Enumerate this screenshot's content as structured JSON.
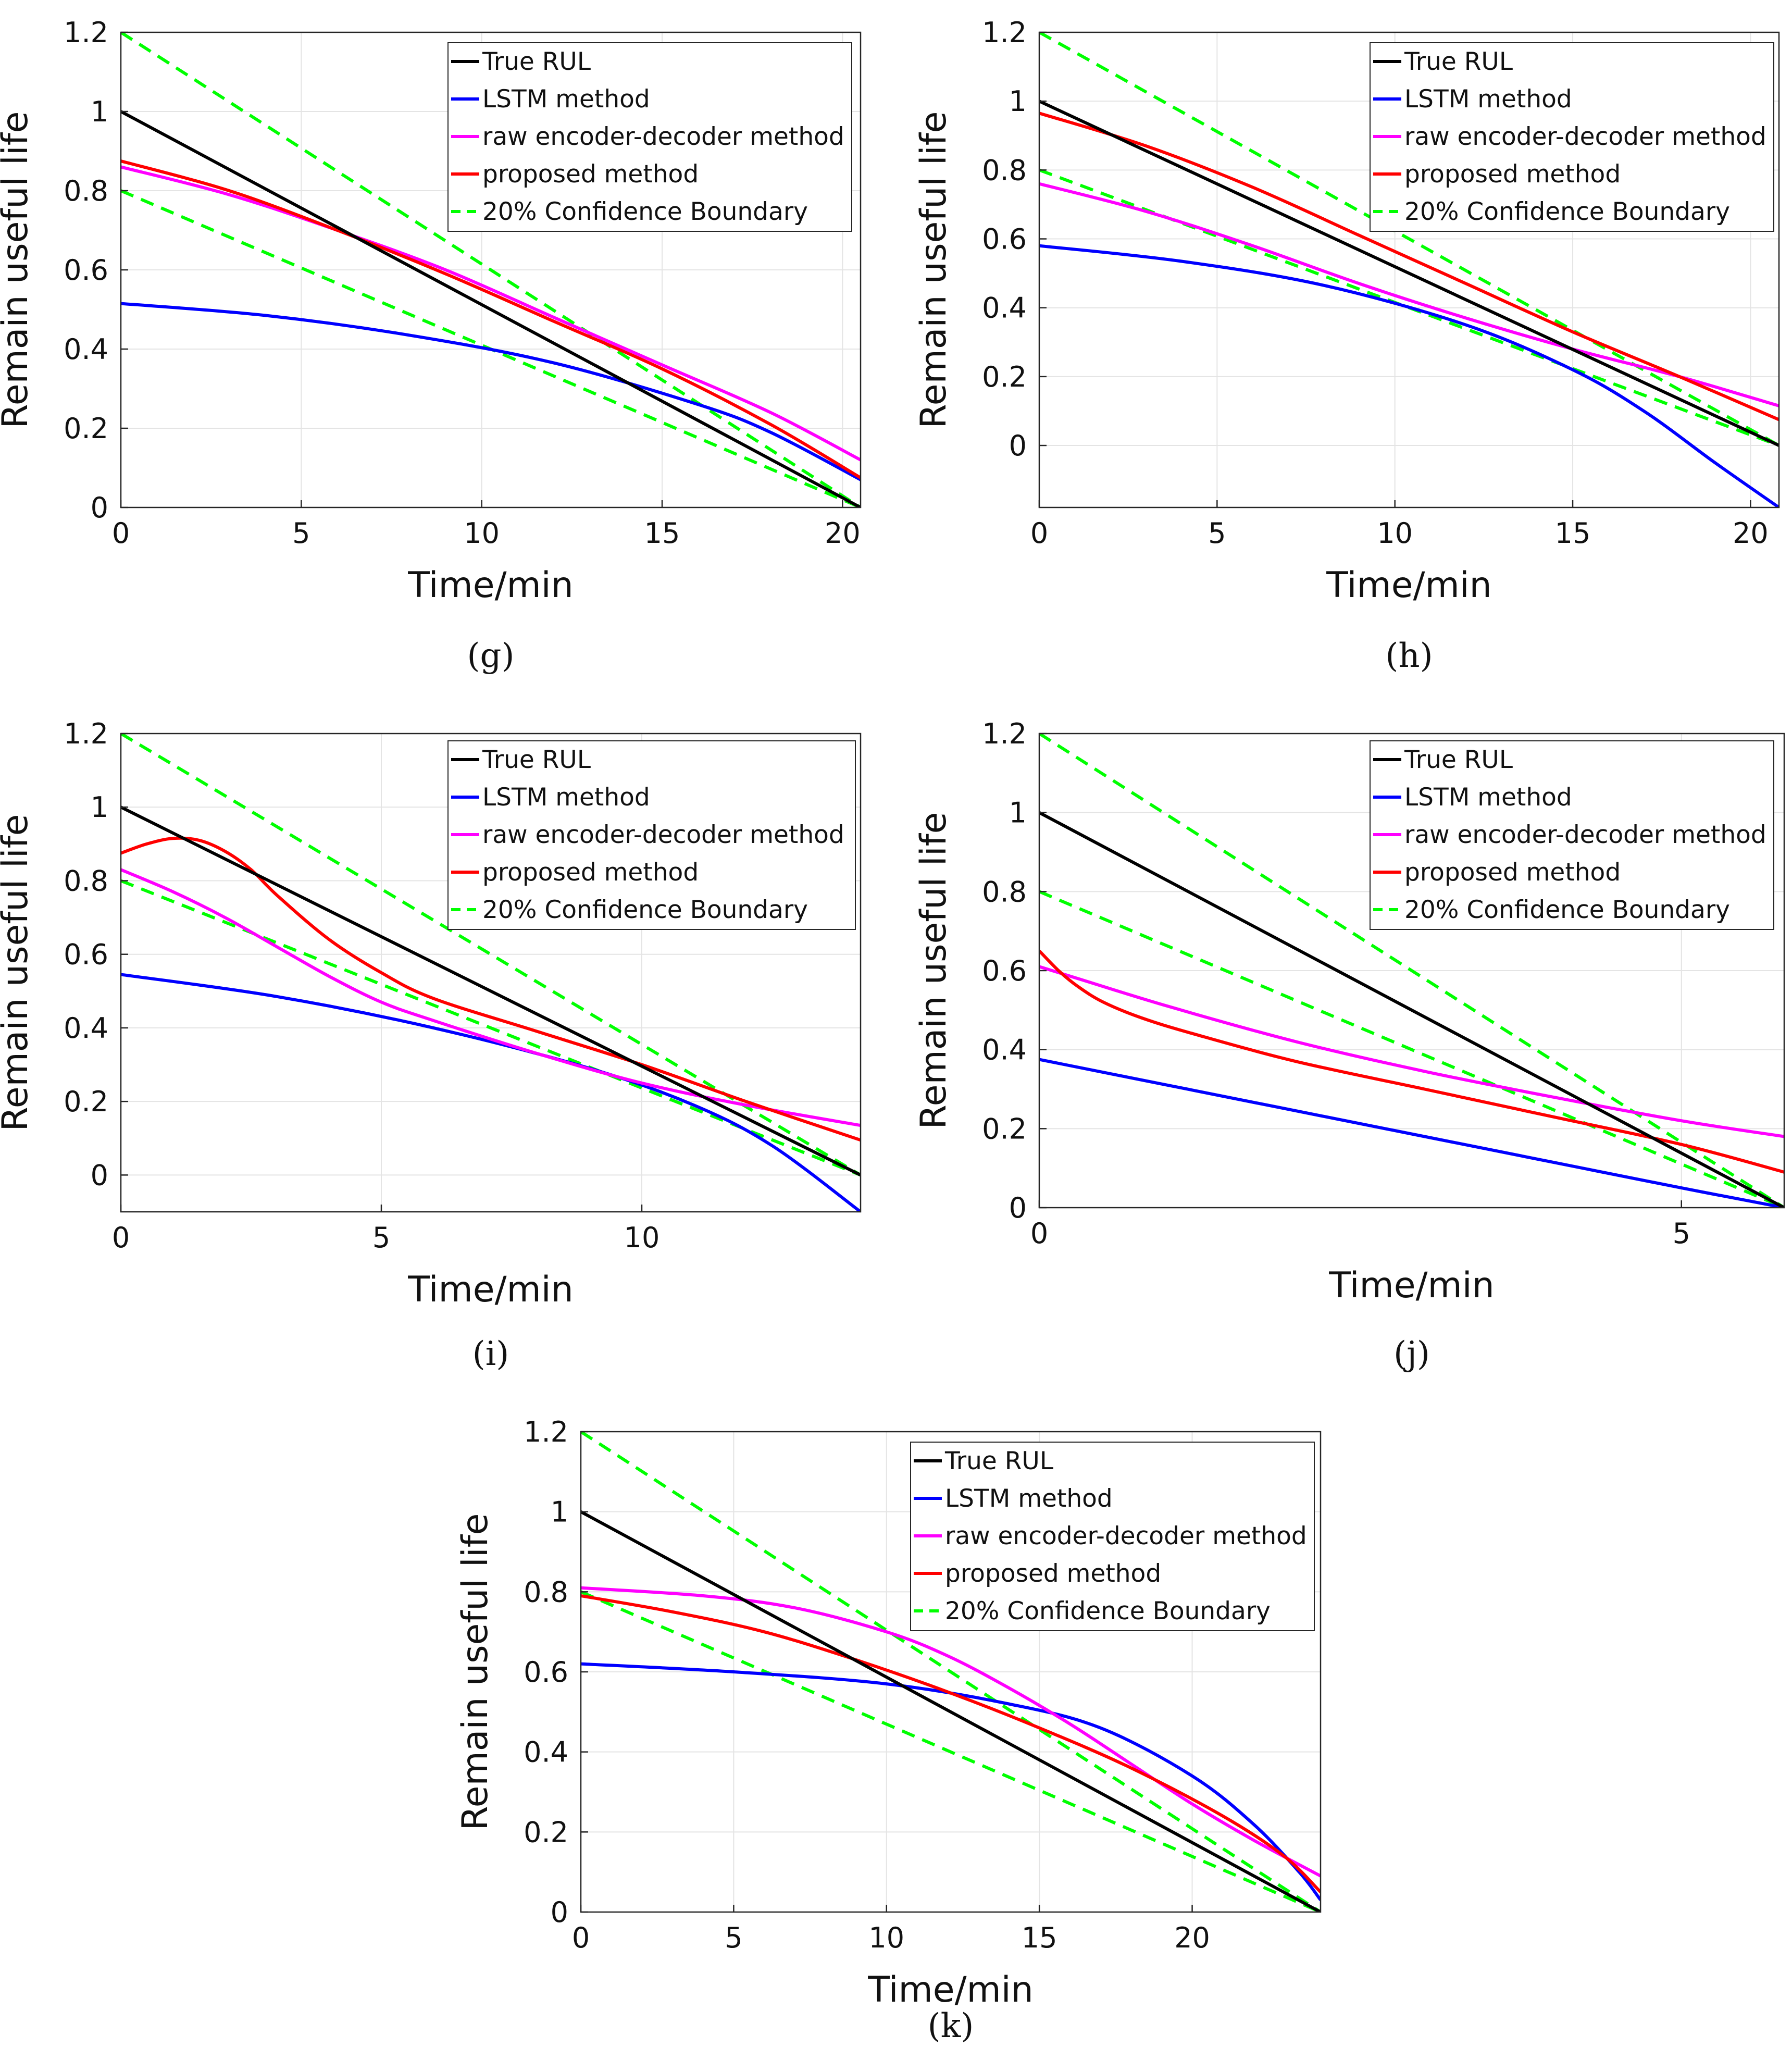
{
  "figure": {
    "legend_labels": [
      "True RUL",
      "LSTM method",
      "raw encoder-decoder method",
      "proposed method",
      "20% Confidence Boundary"
    ],
    "colors": {
      "true": "#000000",
      "lstm": "#0000ff",
      "raw": "#ff00ff",
      "proposed": "#ff0000",
      "bound": "#00ff00",
      "grid": "#e4e4e4"
    }
  },
  "chart_data": [
    {
      "id": "g",
      "type": "line",
      "caption": "(g)",
      "xlabel": "Time/min",
      "ylabel": "Remain useful life",
      "xlim": [
        0,
        20.5
      ],
      "ylim": [
        0,
        1.2
      ],
      "grid": true,
      "legend": "top-right",
      "xticks": [
        0,
        5,
        10,
        15,
        20
      ],
      "yticks": [
        0,
        0.2,
        0.4,
        0.6,
        0.8,
        1,
        1.2
      ],
      "series": [
        {
          "key": "true",
          "name": "True RUL",
          "x": [
            0,
            20.5
          ],
          "y": [
            1,
            0
          ]
        },
        {
          "key": "lstm",
          "name": "LSTM method",
          "x": [
            0,
            4,
            8,
            12,
            16,
            18,
            20.5
          ],
          "y": [
            0.515,
            0.485,
            0.435,
            0.365,
            0.26,
            0.19,
            0.07
          ]
        },
        {
          "key": "raw",
          "name": "raw encoder-decoder method",
          "x": [
            0,
            3,
            6,
            9,
            12,
            15,
            18,
            20.5
          ],
          "y": [
            0.86,
            0.79,
            0.7,
            0.6,
            0.48,
            0.36,
            0.24,
            0.12
          ]
        },
        {
          "key": "proposed",
          "name": "proposed method",
          "x": [
            0,
            3,
            6,
            9,
            12,
            15,
            18,
            20.5
          ],
          "y": [
            0.875,
            0.8,
            0.7,
            0.59,
            0.47,
            0.35,
            0.21,
            0.075
          ]
        },
        {
          "key": "bound",
          "name": "20% Confidence Boundary",
          "x": [
            0,
            20.5
          ],
          "y": [
            1.2,
            0
          ]
        },
        {
          "key": "bound",
          "name": "20% Confidence Boundary",
          "x": [
            0,
            20.5
          ],
          "y": [
            0.8,
            0
          ]
        }
      ]
    },
    {
      "id": "h",
      "type": "line",
      "caption": "(h)",
      "xlabel": "Time/min",
      "ylabel": "Remain useful life",
      "xlim": [
        0,
        20.8
      ],
      "ylim": [
        -0.18,
        1.2
      ],
      "grid": true,
      "legend": "top-right",
      "xticks": [
        0,
        5,
        10,
        15,
        20
      ],
      "yticks": [
        0,
        0.2,
        0.4,
        0.6,
        0.8,
        1,
        1.2
      ],
      "series": [
        {
          "key": "true",
          "name": "True RUL",
          "x": [
            0,
            20.8
          ],
          "y": [
            1,
            0
          ]
        },
        {
          "key": "lstm",
          "name": "LSTM method",
          "x": [
            0,
            4,
            8,
            12,
            15,
            17,
            19,
            20.8
          ],
          "y": [
            0.58,
            0.535,
            0.465,
            0.35,
            0.22,
            0.1,
            -0.05,
            -0.18
          ]
        },
        {
          "key": "raw",
          "name": "raw encoder-decoder method",
          "x": [
            0,
            3,
            6,
            9,
            12,
            15,
            18,
            20.8
          ],
          "y": [
            0.76,
            0.68,
            0.58,
            0.47,
            0.37,
            0.28,
            0.2,
            0.115
          ]
        },
        {
          "key": "proposed",
          "name": "proposed method",
          "x": [
            0,
            3,
            6,
            9,
            12,
            15,
            18,
            20.8
          ],
          "y": [
            0.965,
            0.87,
            0.75,
            0.61,
            0.47,
            0.33,
            0.2,
            0.075
          ]
        },
        {
          "key": "bound",
          "name": "20% Confidence Boundary",
          "x": [
            0,
            20.8
          ],
          "y": [
            1.2,
            0
          ]
        },
        {
          "key": "bound",
          "name": "20% Confidence Boundary",
          "x": [
            0,
            20.8
          ],
          "y": [
            0.8,
            0
          ]
        }
      ]
    },
    {
      "id": "i",
      "type": "line",
      "caption": "(i)",
      "xlabel": "Time/min",
      "ylabel": "Remain useful life",
      "xlim": [
        0,
        14.2
      ],
      "ylim": [
        -0.1,
        1.2
      ],
      "grid": true,
      "legend": "top-right",
      "xticks": [
        0,
        5,
        10
      ],
      "yticks": [
        0,
        0.2,
        0.4,
        0.6,
        0.8,
        1,
        1.2
      ],
      "series": [
        {
          "key": "true",
          "name": "True RUL",
          "x": [
            0,
            14.2
          ],
          "y": [
            1,
            0
          ]
        },
        {
          "key": "lstm",
          "name": "LSTM method",
          "x": [
            0,
            3,
            6,
            9,
            11,
            12.5,
            14.2
          ],
          "y": [
            0.545,
            0.485,
            0.4,
            0.29,
            0.19,
            0.08,
            -0.1
          ]
        },
        {
          "key": "raw",
          "name": "raw encoder-decoder method",
          "x": [
            0,
            1,
            2,
            3,
            4,
            5,
            6,
            8,
            10,
            12,
            14.2
          ],
          "y": [
            0.83,
            0.77,
            0.7,
            0.62,
            0.54,
            0.47,
            0.42,
            0.33,
            0.25,
            0.19,
            0.135
          ]
        },
        {
          "key": "proposed",
          "name": "proposed method",
          "x": [
            0,
            0.5,
            1,
            1.5,
            2,
            2.5,
            3,
            4,
            5,
            6,
            8,
            10,
            12,
            14.2
          ],
          "y": [
            0.875,
            0.9,
            0.915,
            0.91,
            0.88,
            0.83,
            0.76,
            0.64,
            0.55,
            0.48,
            0.39,
            0.3,
            0.2,
            0.095
          ]
        },
        {
          "key": "bound",
          "name": "20% Confidence Boundary",
          "x": [
            0,
            14.2
          ],
          "y": [
            1.2,
            0
          ]
        },
        {
          "key": "bound",
          "name": "20% Confidence Boundary",
          "x": [
            0,
            14.2
          ],
          "y": [
            0.8,
            0
          ]
        }
      ]
    },
    {
      "id": "j",
      "type": "line",
      "caption": "(j)",
      "xlabel": "Time/min",
      "ylabel": "Remain useful life",
      "xlim": [
        0,
        5.8
      ],
      "ylim": [
        0,
        1.2
      ],
      "grid": true,
      "legend": "top-right",
      "xticks": [
        0,
        5
      ],
      "yticks": [
        0,
        0.2,
        0.4,
        0.6,
        0.8,
        1,
        1.2
      ],
      "series": [
        {
          "key": "true",
          "name": "True RUL",
          "x": [
            0,
            5.8
          ],
          "y": [
            1,
            0
          ]
        },
        {
          "key": "lstm",
          "name": "LSTM method",
          "x": [
            0,
            1,
            2,
            3,
            4,
            5,
            5.8
          ],
          "y": [
            0.375,
            0.31,
            0.245,
            0.18,
            0.115,
            0.05,
            0
          ]
        },
        {
          "key": "raw",
          "name": "raw encoder-decoder method",
          "x": [
            0,
            0.3,
            1,
            2,
            3,
            4,
            5,
            5.8
          ],
          "y": [
            0.61,
            0.58,
            0.51,
            0.42,
            0.345,
            0.28,
            0.22,
            0.18
          ]
        },
        {
          "key": "proposed",
          "name": "proposed method",
          "x": [
            0,
            0.15,
            0.3,
            0.5,
            0.8,
            1.2,
            2,
            3,
            4,
            5,
            5.8
          ],
          "y": [
            0.65,
            0.6,
            0.56,
            0.52,
            0.48,
            0.44,
            0.37,
            0.3,
            0.23,
            0.16,
            0.09
          ]
        },
        {
          "key": "bound",
          "name": "20% Confidence Boundary",
          "x": [
            0,
            5.8
          ],
          "y": [
            1.2,
            0
          ]
        },
        {
          "key": "bound",
          "name": "20% Confidence Boundary",
          "x": [
            0,
            5.8
          ],
          "y": [
            0.8,
            0
          ]
        }
      ]
    },
    {
      "id": "k",
      "type": "line",
      "caption": "(k)",
      "xlabel": "Time/min",
      "ylabel": "Remain useful life",
      "xlim": [
        0,
        24.2
      ],
      "ylim": [
        0,
        1.2
      ],
      "grid": true,
      "legend": "top-right",
      "xticks": [
        0,
        5,
        10,
        15,
        20
      ],
      "yticks": [
        0,
        0.2,
        0.4,
        0.6,
        0.8,
        1,
        1.2
      ],
      "series": [
        {
          "key": "true",
          "name": "True RUL",
          "x": [
            0,
            24.2
          ],
          "y": [
            1,
            0
          ]
        },
        {
          "key": "lstm",
          "name": "LSTM method",
          "x": [
            0,
            5,
            10,
            14,
            17,
            20,
            22,
            23.5,
            24.2
          ],
          "y": [
            0.62,
            0.6,
            0.57,
            0.52,
            0.46,
            0.34,
            0.22,
            0.1,
            0.03
          ]
        },
        {
          "key": "raw",
          "name": "raw encoder-decoder method",
          "x": [
            0,
            4,
            7,
            10,
            12,
            14,
            16,
            18,
            20,
            22,
            24.2
          ],
          "y": [
            0.81,
            0.79,
            0.76,
            0.7,
            0.64,
            0.56,
            0.47,
            0.37,
            0.27,
            0.18,
            0.09
          ]
        },
        {
          "key": "proposed",
          "name": "proposed method",
          "x": [
            0,
            3,
            6,
            9,
            12,
            15,
            18,
            21,
            23,
            24.2
          ],
          "y": [
            0.79,
            0.75,
            0.7,
            0.63,
            0.55,
            0.46,
            0.36,
            0.24,
            0.14,
            0.05
          ]
        },
        {
          "key": "bound",
          "name": "20% Confidence Boundary",
          "x": [
            0,
            24.2
          ],
          "y": [
            1.2,
            0
          ]
        },
        {
          "key": "bound",
          "name": "20% Confidence Boundary",
          "x": [
            0,
            24.2
          ],
          "y": [
            0.8,
            0
          ]
        }
      ]
    }
  ]
}
